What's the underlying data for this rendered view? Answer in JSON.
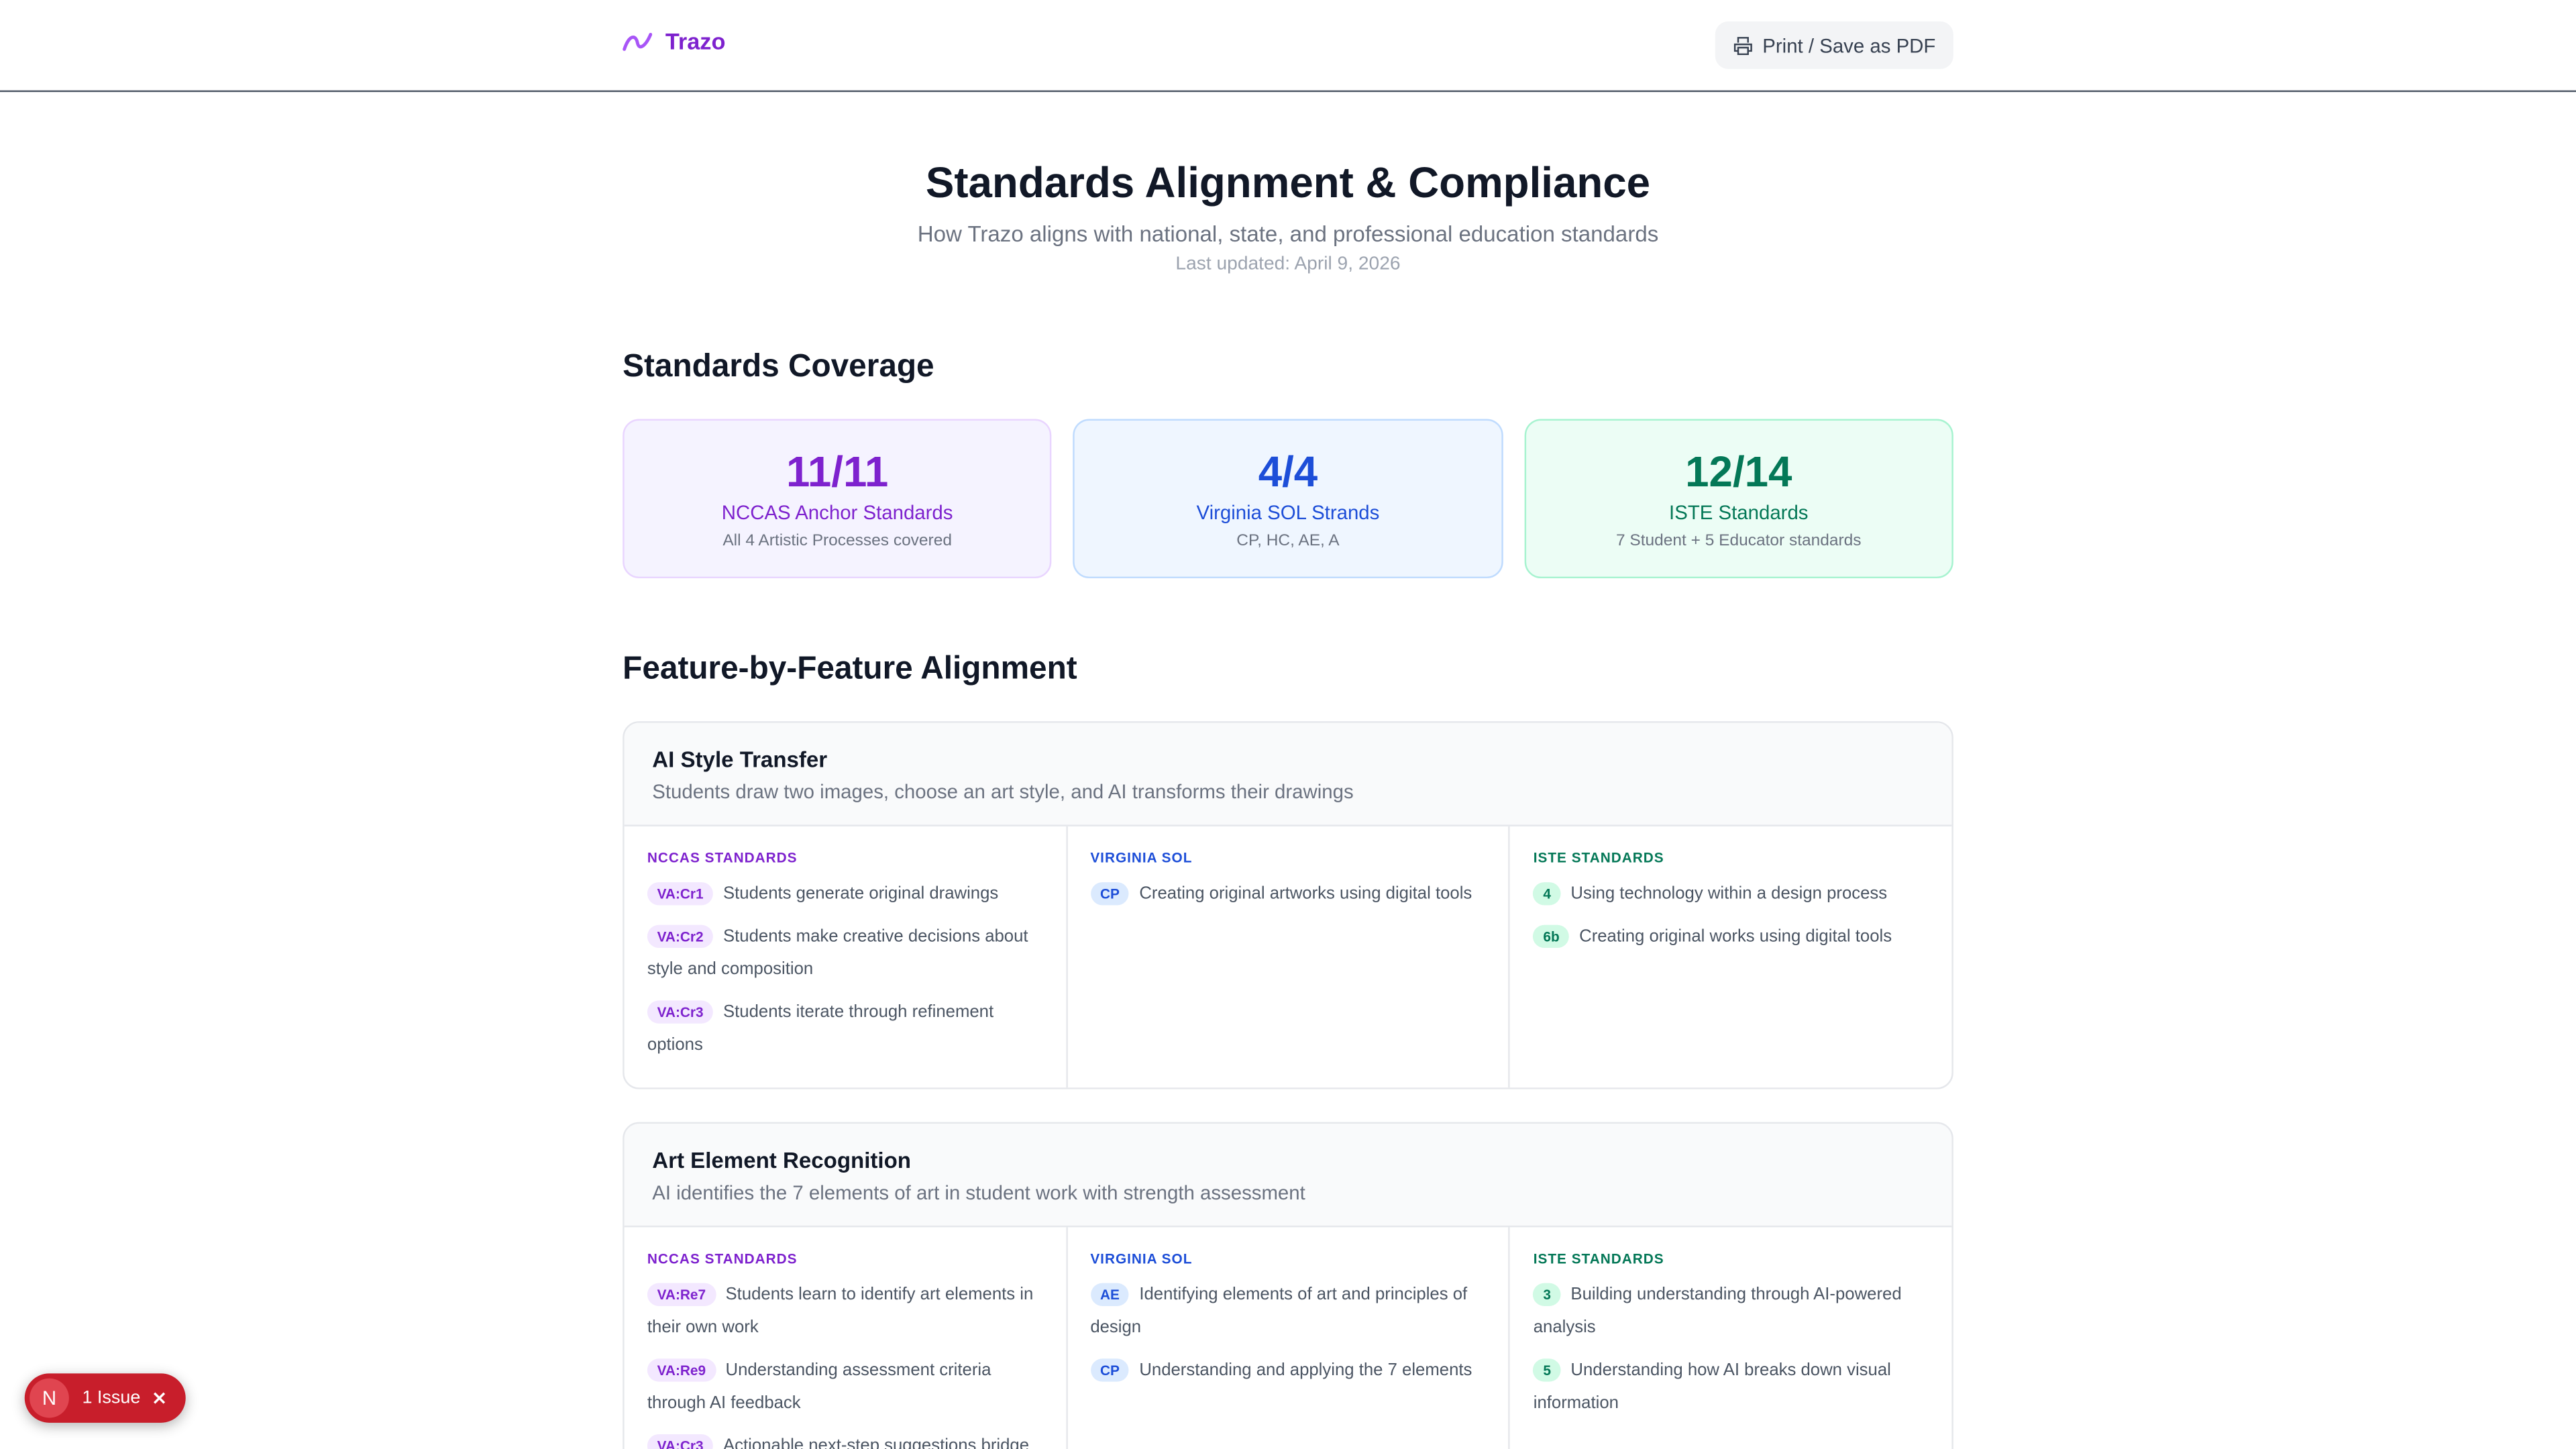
{
  "header": {
    "logo": "Trazo",
    "print_button": "Print / Save as PDF"
  },
  "hero": {
    "title": "Standards Alignment & Compliance",
    "subtitle": "How Trazo aligns with national, state, and professional education standards",
    "updated": "Last updated: April 9, 2026"
  },
  "coverage": {
    "heading": "Standards Coverage",
    "cards": [
      {
        "value": "11/11",
        "label": "NCCAS Anchor Standards",
        "note": "All 4 Artistic Processes covered"
      },
      {
        "value": "4/4",
        "label": "Virginia SOL Strands",
        "note": "CP, HC, AE, A"
      },
      {
        "value": "12/14",
        "label": "ISTE Standards",
        "note": "7 Student + 5 Educator standards"
      }
    ]
  },
  "alignment": {
    "heading": "Feature-by-Feature Alignment",
    "features": [
      {
        "title": "AI Style Transfer",
        "description": "Students draw two images, choose an art style, and AI transforms their drawings",
        "columns": [
          {
            "heading": "NCCAS STANDARDS",
            "items": [
              {
                "code": "VA:Cr1",
                "text": "Students generate original drawings"
              },
              {
                "code": "VA:Cr2",
                "text": "Students make creative decisions about style and composition"
              },
              {
                "code": "VA:Cr3",
                "text": "Students iterate through refinement options"
              }
            ]
          },
          {
            "heading": "VIRGINIA SOL",
            "items": [
              {
                "code": "CP",
                "text": "Creating original artworks using digital tools"
              }
            ]
          },
          {
            "heading": "ISTE STANDARDS",
            "items": [
              {
                "code": "4",
                "text": "Using technology within a design process"
              },
              {
                "code": "6b",
                "text": "Creating original works using digital tools"
              }
            ]
          }
        ]
      },
      {
        "title": "Art Element Recognition",
        "description": "AI identifies the 7 elements of art in student work with strength assessment",
        "columns": [
          {
            "heading": "NCCAS STANDARDS",
            "items": [
              {
                "code": "VA:Re7",
                "text": "Students learn to identify art elements in their own work"
              },
              {
                "code": "VA:Re9",
                "text": "Understanding assessment criteria through AI feedback"
              },
              {
                "code": "VA:Cr3",
                "text": "Actionable next-step suggestions bridge"
              }
            ]
          },
          {
            "heading": "VIRGINIA SOL",
            "items": [
              {
                "code": "AE",
                "text": "Identifying elements of art and principles of design"
              },
              {
                "code": "CP",
                "text": "Understanding and applying the 7 elements"
              }
            ]
          },
          {
            "heading": "ISTE STANDARDS",
            "items": [
              {
                "code": "3",
                "text": "Building understanding through AI-powered analysis"
              },
              {
                "code": "5",
                "text": "Understanding how AI breaks down visual information"
              }
            ]
          }
        ]
      }
    ]
  },
  "toast": {
    "icon": "N",
    "label": "1 Issue"
  }
}
